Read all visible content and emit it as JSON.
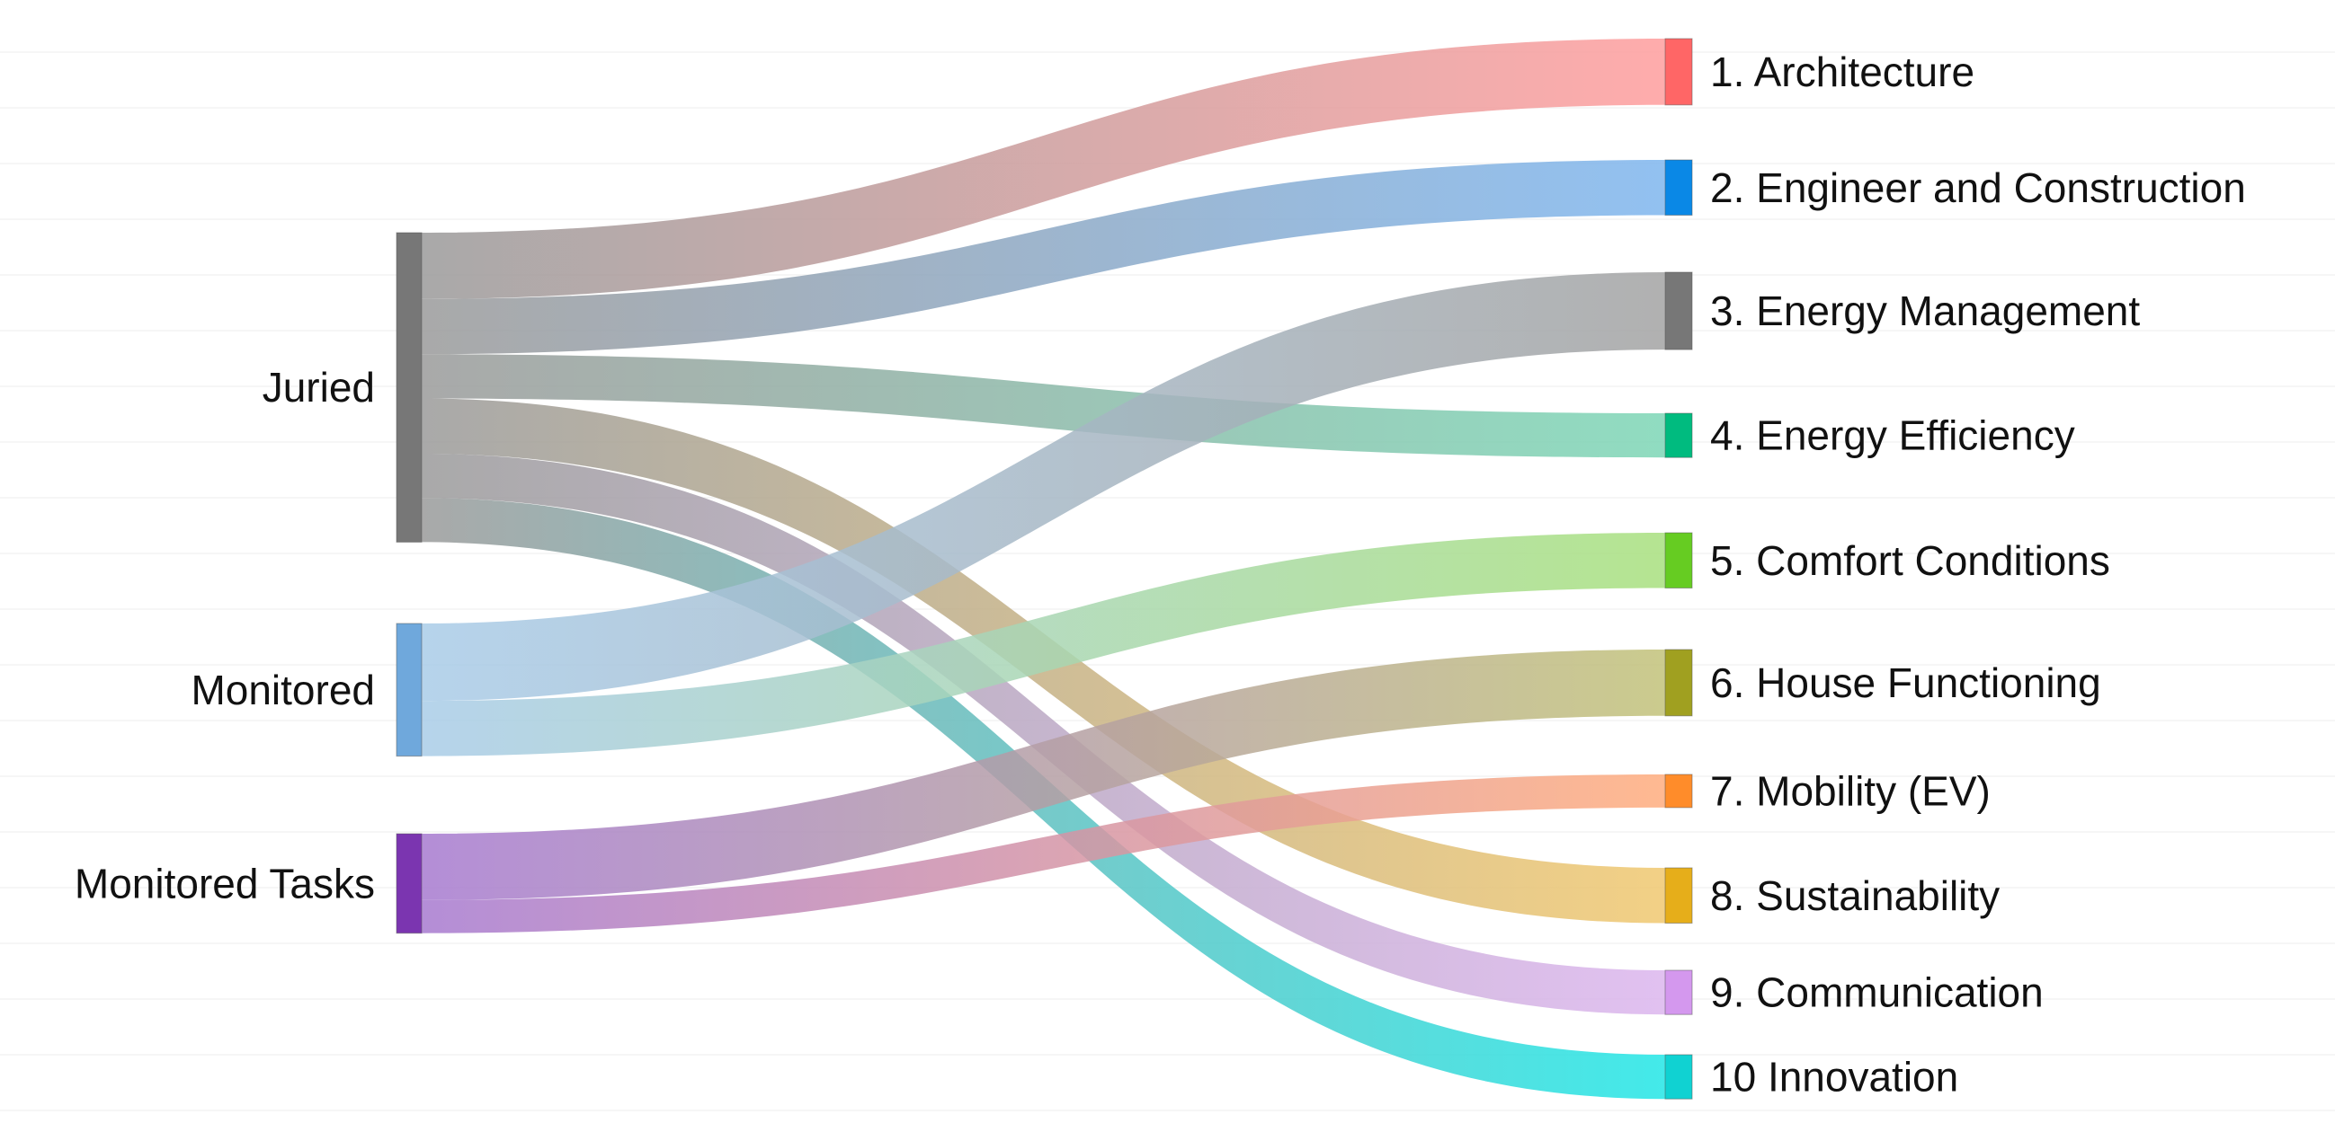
{
  "chart_data": {
    "type": "sankey",
    "sources": [
      {
        "id": "juried",
        "label": "Juried",
        "color": "#777777",
        "link_color": "#9a9a9a",
        "value": 700
      },
      {
        "id": "monitored",
        "label": "Monitored",
        "color": "#6fa8dc",
        "link_color": "#a9cce8",
        "value": 300
      },
      {
        "id": "tasks",
        "label": "Monitored Tasks",
        "color": "#7b35b0",
        "link_color": "#a77ad0",
        "value": 225
      }
    ],
    "targets": [
      {
        "id": "t1",
        "label": "1. Architecture",
        "color": "#ff6666",
        "link_color": "#ff9e9e",
        "value": 150
      },
      {
        "id": "t2",
        "label": "2. Engineer and Construction",
        "color": "#0a88e6",
        "link_color": "#7fb6ee",
        "value": 125
      },
      {
        "id": "t3",
        "label": "3. Energy Management",
        "color": "#777777",
        "link_color": "#a3a3a3",
        "value": 175
      },
      {
        "id": "t4",
        "label": "4. Energy Efficiency",
        "color": "#00bb7f",
        "link_color": "#7dd6b6",
        "value": 100
      },
      {
        "id": "t5",
        "label": "5. Comfort Conditions",
        "color": "#66cc22",
        "link_color": "#a8e07e",
        "value": 125
      },
      {
        "id": "t6",
        "label": "6. House Functioning",
        "color": "#a0a020",
        "link_color": "#c2c27a",
        "value": 150
      },
      {
        "id": "t7",
        "label": "7. Mobility (EV)",
        "color": "#ff8c2a",
        "link_color": "#ffad7e",
        "value": 75
      },
      {
        "id": "t8",
        "label": "8. Sustainability",
        "color": "#e6ae1a",
        "link_color": "#f0c870",
        "value": 125
      },
      {
        "id": "t9",
        "label": "9. Communication",
        "color": "#d498ee",
        "link_color": "#dcb6ee",
        "value": 100
      },
      {
        "id": "t10",
        "label": "10 Innovation",
        "color": "#10d2d2",
        "link_color": "#22e6e6",
        "value": 100
      }
    ],
    "links": [
      {
        "source": "juried",
        "target": "t1",
        "value": 150
      },
      {
        "source": "juried",
        "target": "t2",
        "value": 125
      },
      {
        "source": "juried",
        "target": "t4",
        "value": 100
      },
      {
        "source": "juried",
        "target": "t8",
        "value": 125
      },
      {
        "source": "juried",
        "target": "t9",
        "value": 100
      },
      {
        "source": "juried",
        "target": "t10",
        "value": 100
      },
      {
        "source": "monitored",
        "target": "t3",
        "value": 175
      },
      {
        "source": "monitored",
        "target": "t5",
        "value": 125
      },
      {
        "source": "tasks",
        "target": "t6",
        "value": 150
      },
      {
        "source": "tasks",
        "target": "t7",
        "value": 75
      }
    ]
  }
}
